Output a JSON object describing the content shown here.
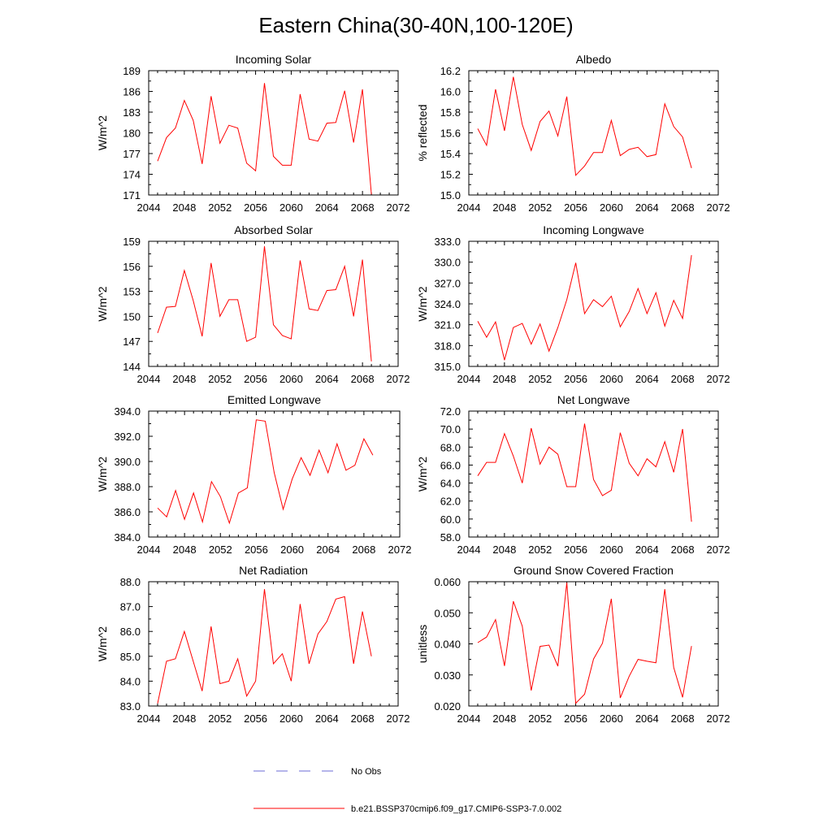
{
  "title": "Eastern China(30-40N,100-120E)",
  "legend": {
    "obs_label": "No Obs",
    "obs_color": "#6b6bd6",
    "model_label": "b.e21.BSSP370cmip6.f09_g17.CMIP6-SSP3-7.0.002",
    "model_color": "#ff0000"
  },
  "chart_data": [
    {
      "type": "line",
      "title": "Incoming Solar",
      "ylabel": "W/m^2",
      "xlim": [
        2044,
        2072
      ],
      "xticks": [
        "2044",
        "2048",
        "2052",
        "2056",
        "2060",
        "2064",
        "2068",
        "2072"
      ],
      "ylim": [
        171,
        189
      ],
      "yticks": [
        "171",
        "174",
        "177",
        "180",
        "183",
        "186",
        "189"
      ],
      "x": [
        2045,
        2046,
        2047,
        2048,
        2049,
        2050,
        2051,
        2052,
        2053,
        2054,
        2055,
        2056,
        2057,
        2058,
        2059,
        2060,
        2061,
        2062,
        2063,
        2064,
        2065,
        2066,
        2067,
        2068,
        2069
      ],
      "values": [
        175.9,
        179.3,
        180.7,
        184.7,
        181.8,
        175.5,
        185.3,
        178.5,
        181.1,
        180.7,
        175.6,
        174.5,
        187.2,
        176.6,
        175.3,
        175.3,
        185.6,
        179.1,
        178.8,
        181.4,
        181.5,
        186.1,
        178.6,
        186.3,
        171.1
      ],
      "color": "#ff0000"
    },
    {
      "type": "line",
      "title": "Albedo",
      "ylabel": "% reflected",
      "xlim": [
        2044,
        2072
      ],
      "xticks": [
        "2044",
        "2048",
        "2052",
        "2056",
        "2060",
        "2064",
        "2068",
        "2072"
      ],
      "ylim": [
        15.0,
        16.2
      ],
      "yticks": [
        "15.0",
        "15.2",
        "15.4",
        "15.6",
        "15.8",
        "16.0",
        "16.2"
      ],
      "x": [
        2045,
        2046,
        2047,
        2048,
        2049,
        2050,
        2051,
        2052,
        2053,
        2054,
        2055,
        2056,
        2057,
        2058,
        2059,
        2060,
        2061,
        2062,
        2063,
        2064,
        2065,
        2066,
        2067,
        2068,
        2069
      ],
      "values": [
        15.64,
        15.48,
        16.02,
        15.62,
        16.14,
        15.68,
        15.43,
        15.71,
        15.81,
        15.57,
        15.95,
        15.19,
        15.28,
        15.41,
        15.41,
        15.72,
        15.38,
        15.44,
        15.46,
        15.37,
        15.39,
        15.88,
        15.66,
        15.56,
        15.26
      ],
      "color": "#ff0000"
    },
    {
      "type": "line",
      "title": "Absorbed Solar",
      "ylabel": "W/m^2",
      "xlim": [
        2044,
        2072
      ],
      "xticks": [
        "2044",
        "2048",
        "2052",
        "2056",
        "2060",
        "2064",
        "2068",
        "2072"
      ],
      "ylim": [
        144,
        159
      ],
      "yticks": [
        "144",
        "147",
        "150",
        "153",
        "156",
        "159"
      ],
      "x": [
        2045,
        2046,
        2047,
        2048,
        2049,
        2050,
        2051,
        2052,
        2053,
        2054,
        2055,
        2056,
        2057,
        2058,
        2059,
        2060,
        2061,
        2062,
        2063,
        2064,
        2065,
        2066,
        2067,
        2068,
        2069
      ],
      "values": [
        148.0,
        151.1,
        151.2,
        155.5,
        151.9,
        147.6,
        156.4,
        150.0,
        152.0,
        152.0,
        147.0,
        147.5,
        158.4,
        149.0,
        147.7,
        147.3,
        156.7,
        150.9,
        150.7,
        153.1,
        153.2,
        156.0,
        150.0,
        156.8,
        144.6
      ],
      "color": "#ff0000"
    },
    {
      "type": "line",
      "title": "Incoming Longwave",
      "ylabel": "W/m^2",
      "xlim": [
        2044,
        2072
      ],
      "xticks": [
        "2044",
        "2048",
        "2052",
        "2056",
        "2060",
        "2064",
        "2068",
        "2072"
      ],
      "ylim": [
        315.0,
        333.0
      ],
      "yticks": [
        "315.0",
        "318.0",
        "321.0",
        "324.0",
        "327.0",
        "330.0",
        "333.0"
      ],
      "x": [
        2045,
        2046,
        2047,
        2048,
        2049,
        2050,
        2051,
        2052,
        2053,
        2054,
        2055,
        2056,
        2057,
        2058,
        2059,
        2060,
        2061,
        2062,
        2063,
        2064,
        2065,
        2066,
        2067,
        2068,
        2069
      ],
      "values": [
        321.5,
        319.2,
        321.4,
        315.9,
        320.6,
        321.2,
        318.2,
        321.1,
        317.2,
        320.6,
        324.6,
        329.9,
        322.6,
        324.6,
        323.6,
        325.1,
        320.7,
        322.9,
        326.2,
        322.6,
        325.6,
        320.8,
        324.5,
        321.9,
        331.0
      ],
      "color": "#ff0000"
    },
    {
      "type": "line",
      "title": "Emitted Longwave",
      "ylabel": "W/m^2",
      "xlim": [
        2044,
        2072
      ],
      "xticks": [
        "2044",
        "2048",
        "2052",
        "2056",
        "2060",
        "2064",
        "2068",
        "2072"
      ],
      "ylim": [
        384.0,
        394.0
      ],
      "yticks": [
        "384.0",
        "386.0",
        "388.0",
        "390.0",
        "392.0",
        "394.0"
      ],
      "x": [
        2045,
        2046,
        2047,
        2048,
        2049,
        2050,
        2051,
        2052,
        2053,
        2054,
        2055,
        2056,
        2057,
        2058,
        2059,
        2060,
        2061,
        2062,
        2063,
        2064,
        2065,
        2066,
        2067,
        2068,
        2069
      ],
      "values": [
        386.3,
        385.6,
        387.7,
        385.4,
        387.5,
        385.2,
        388.4,
        387.2,
        385.1,
        387.5,
        387.9,
        393.3,
        393.2,
        389.1,
        386.2,
        388.6,
        390.3,
        388.9,
        390.9,
        389.1,
        391.4,
        389.3,
        389.7,
        391.8,
        390.5
      ],
      "color": "#ff0000"
    },
    {
      "type": "line",
      "title": "Net Longwave",
      "ylabel": "W/m^2",
      "xlim": [
        2044,
        2072
      ],
      "xticks": [
        "2044",
        "2048",
        "2052",
        "2056",
        "2060",
        "2064",
        "2068",
        "2072"
      ],
      "ylim": [
        58.0,
        72.0
      ],
      "yticks": [
        "58.0",
        "60.0",
        "62.0",
        "64.0",
        "66.0",
        "68.0",
        "70.0",
        "72.0"
      ],
      "x": [
        2045,
        2046,
        2047,
        2048,
        2049,
        2050,
        2051,
        2052,
        2053,
        2054,
        2055,
        2056,
        2057,
        2058,
        2059,
        2060,
        2061,
        2062,
        2063,
        2064,
        2065,
        2066,
        2067,
        2068,
        2069
      ],
      "values": [
        64.8,
        66.3,
        66.3,
        69.5,
        67.0,
        64.0,
        70.1,
        66.1,
        68.0,
        67.2,
        63.6,
        63.6,
        70.6,
        64.4,
        62.6,
        63.2,
        69.6,
        66.2,
        64.8,
        66.7,
        65.8,
        68.6,
        65.2,
        70.0,
        59.7
      ],
      "color": "#ff0000"
    },
    {
      "type": "line",
      "title": "Net Radiation",
      "ylabel": "W/m^2",
      "xlim": [
        2044,
        2072
      ],
      "xticks": [
        "2044",
        "2048",
        "2052",
        "2056",
        "2060",
        "2064",
        "2068",
        "2072"
      ],
      "ylim": [
        83.0,
        88.0
      ],
      "yticks": [
        "83.0",
        "84.0",
        "85.0",
        "86.0",
        "87.0",
        "88.0"
      ],
      "x": [
        2045,
        2046,
        2047,
        2048,
        2049,
        2050,
        2051,
        2052,
        2053,
        2054,
        2055,
        2056,
        2057,
        2058,
        2059,
        2060,
        2061,
        2062,
        2063,
        2064,
        2065,
        2066,
        2067,
        2068,
        2069
      ],
      "values": [
        83.1,
        84.8,
        84.9,
        86.0,
        84.8,
        83.6,
        86.2,
        83.9,
        84.0,
        84.9,
        83.4,
        84.0,
        87.7,
        84.7,
        85.1,
        84.0,
        87.1,
        84.7,
        85.9,
        86.4,
        87.3,
        87.4,
        84.7,
        86.8,
        85.0
      ],
      "color": "#ff0000"
    },
    {
      "type": "line",
      "title": "Ground Snow Covered Fraction",
      "ylabel": "unitless",
      "xlim": [
        2044,
        2072
      ],
      "xticks": [
        "2044",
        "2048",
        "2052",
        "2056",
        "2060",
        "2064",
        "2068",
        "2072"
      ],
      "ylim": [
        0.02,
        0.06
      ],
      "yticks": [
        "0.020",
        "0.030",
        "0.040",
        "0.050",
        "0.060"
      ],
      "x": [
        2045,
        2046,
        2047,
        2048,
        2049,
        2050,
        2051,
        2052,
        2053,
        2054,
        2055,
        2056,
        2057,
        2058,
        2059,
        2060,
        2061,
        2062,
        2063,
        2064,
        2065,
        2066,
        2067,
        2068,
        2069
      ],
      "values": [
        0.0404,
        0.0422,
        0.0478,
        0.0329,
        0.0537,
        0.0457,
        0.025,
        0.0392,
        0.0396,
        0.0328,
        0.0597,
        0.0209,
        0.0238,
        0.0351,
        0.0402,
        0.0545,
        0.0226,
        0.0296,
        0.035,
        0.0344,
        0.0339,
        0.0576,
        0.0324,
        0.0228,
        0.0393
      ],
      "color": "#ff0000"
    }
  ]
}
